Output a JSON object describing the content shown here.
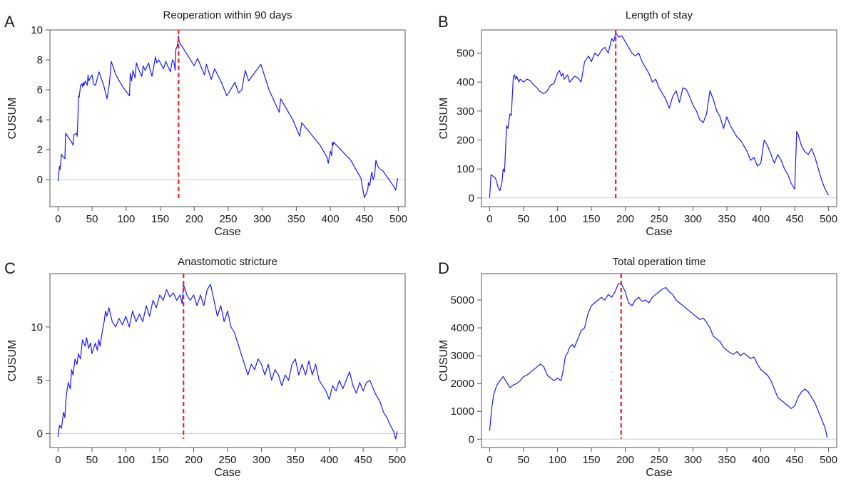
{
  "colors": {
    "line": "#1a1aff",
    "cutoff": "#e8242a",
    "zero": "#cccccc",
    "frame": "#555555",
    "text": "#1a1a1a"
  },
  "chart_data": [
    {
      "panel": "A",
      "type": "line",
      "title": "Reoperation within 90 days",
      "xlabel": "Case",
      "ylabel": "CUSUM",
      "xlim": [
        -12,
        510
      ],
      "ylim": [
        -1.8,
        10.0
      ],
      "xticks": [
        0,
        50,
        100,
        150,
        200,
        250,
        300,
        350,
        400,
        450,
        500
      ],
      "yticks": [
        0,
        2,
        4,
        6,
        8,
        10
      ],
      "cutoff_x": 177,
      "series": [
        {
          "x": [
            0,
            2,
            3,
            5,
            6,
            10,
            11,
            20,
            22,
            23,
            27,
            28,
            29,
            30,
            31,
            33,
            35,
            36,
            37,
            38,
            40,
            43,
            44,
            45,
            50,
            52,
            55,
            60,
            67,
            72,
            75,
            77,
            78,
            85,
            95,
            105,
            106,
            108,
            110,
            113,
            115,
            118,
            123,
            125,
            128,
            133,
            135,
            138,
            143,
            145,
            148,
            155,
            158,
            165,
            168,
            170,
            172,
            173,
            175,
            177,
            178,
            200,
            205,
            215,
            218,
            225,
            230,
            240,
            248,
            260,
            265,
            270,
            275,
            280,
            298,
            310,
            325,
            327,
            345,
            355,
            358,
            385,
            395,
            397,
            400,
            402,
            403,
            404,
            405,
            430,
            445,
            448,
            450,
            455,
            456,
            458,
            460,
            461,
            463,
            465,
            467,
            470,
            473,
            477,
            485,
            494,
            496,
            499
          ],
          "y": [
            -0.1,
            0.9,
            0.7,
            1.7,
            1.6,
            1.4,
            3.1,
            2.5,
            2.3,
            3.0,
            3.1,
            2.9,
            4.0,
            5.6,
            5.5,
            6.3,
            6.4,
            6.2,
            6.5,
            6.3,
            6.6,
            6.3,
            7.0,
            6.6,
            7.0,
            6.4,
            6.3,
            7.2,
            6.3,
            5.4,
            6.3,
            7.2,
            7.9,
            7.0,
            6.2,
            5.6,
            7.1,
            6.6,
            7.3,
            6.8,
            7.8,
            7.4,
            6.9,
            7.6,
            7.3,
            7.8,
            7.4,
            6.9,
            8.2,
            7.8,
            8.0,
            7.4,
            7.9,
            7.2,
            8.0,
            7.9,
            7.3,
            8.7,
            8.9,
            9.6,
            9.2,
            7.6,
            8.1,
            7.0,
            7.7,
            6.7,
            7.4,
            6.5,
            5.6,
            6.5,
            5.8,
            6.0,
            7.3,
            6.6,
            7.7,
            6.0,
            4.5,
            5.4,
            4.0,
            2.9,
            3.8,
            2.3,
            1.5,
            1.1,
            1.9,
            1.6,
            2.5,
            2.3,
            2.5,
            1.3,
            0.1,
            -0.7,
            -1.2,
            -0.7,
            -0.2,
            -0.4,
            0.3,
            0.5,
            0.0,
            0.3,
            1.3,
            0.9,
            0.7,
            0.6,
            0.1,
            -0.5,
            -0.7,
            0.1
          ]
        }
      ]
    },
    {
      "panel": "B",
      "type": "line",
      "title": "Length of stay",
      "xlabel": "Case",
      "ylabel": "CUSUM",
      "xlim": [
        -12,
        512
      ],
      "ylim": [
        -30,
        580
      ],
      "xticks": [
        0,
        50,
        100,
        150,
        200,
        250,
        300,
        350,
        400,
        450,
        500
      ],
      "yticks": [
        0,
        100,
        200,
        300,
        400,
        500
      ],
      "cutoff_x": 186,
      "series": [
        {
          "x": [
            0,
            2,
            5,
            8,
            10,
            12,
            15,
            18,
            20,
            22,
            25,
            27,
            30,
            32,
            35,
            37,
            38,
            40,
            43,
            45,
            48,
            50,
            55,
            60,
            65,
            70,
            73,
            76,
            80,
            85,
            90,
            95,
            100,
            103,
            106,
            108,
            110,
            115,
            118,
            122,
            125,
            130,
            135,
            140,
            143,
            146,
            150,
            155,
            160,
            165,
            170,
            175,
            178,
            180,
            183,
            186,
            190,
            195,
            200,
            205,
            210,
            215,
            220,
            225,
            230,
            235,
            240,
            245,
            250,
            255,
            260,
            265,
            270,
            275,
            280,
            285,
            290,
            295,
            300,
            305,
            310,
            315,
            320,
            325,
            330,
            335,
            340,
            345,
            350,
            355,
            360,
            365,
            370,
            375,
            380,
            385,
            390,
            395,
            400,
            405,
            410,
            415,
            420,
            425,
            430,
            435,
            440,
            445,
            450,
            453,
            455,
            460,
            465,
            470,
            475,
            480,
            485,
            490,
            495,
            500
          ],
          "y": [
            0,
            80,
            75,
            70,
            60,
            40,
            25,
            50,
            100,
            90,
            250,
            240,
            290,
            285,
            420,
            425,
            410,
            420,
            400,
            410,
            405,
            400,
            410,
            405,
            390,
            380,
            370,
            365,
            360,
            370,
            390,
            395,
            430,
            440,
            420,
            430,
            410,
            425,
            400,
            410,
            420,
            415,
            400,
            470,
            480,
            490,
            470,
            500,
            490,
            510,
            520,
            500,
            530,
            550,
            540,
            570,
            555,
            560,
            540,
            520,
            500,
            490,
            500,
            470,
            450,
            430,
            400,
            410,
            380,
            360,
            340,
            310,
            350,
            370,
            330,
            380,
            375,
            350,
            320,
            300,
            270,
            260,
            290,
            370,
            340,
            300,
            280,
            240,
            280,
            250,
            230,
            210,
            200,
            180,
            160,
            130,
            140,
            110,
            120,
            200,
            180,
            150,
            120,
            150,
            130,
            100,
            80,
            50,
            30,
            230,
            220,
            180,
            160,
            150,
            170,
            140,
            100,
            60,
            30,
            10
          ]
        }
      ]
    },
    {
      "panel": "C",
      "type": "line",
      "title": "Anastomotic stricture",
      "xlabel": "Case",
      "ylabel": "CUSUM",
      "xlim": [
        -12,
        512
      ],
      "ylim": [
        -1.3,
        15.0
      ],
      "xticks": [
        0,
        50,
        100,
        150,
        200,
        250,
        300,
        350,
        400,
        450,
        500
      ],
      "yticks": [
        0,
        5,
        10
      ],
      "cutoff_x": 185,
      "series": [
        {
          "x": [
            0,
            2,
            5,
            8,
            10,
            12,
            15,
            18,
            20,
            22,
            25,
            28,
            30,
            33,
            36,
            40,
            42,
            45,
            48,
            50,
            55,
            58,
            60,
            62,
            65,
            68,
            70,
            72,
            75,
            78,
            80,
            85,
            90,
            95,
            100,
            105,
            110,
            115,
            120,
            125,
            130,
            135,
            140,
            145,
            150,
            155,
            160,
            165,
            170,
            175,
            180,
            183,
            185,
            190,
            195,
            200,
            205,
            210,
            215,
            220,
            225,
            230,
            235,
            240,
            245,
            250,
            255,
            260,
            265,
            270,
            275,
            280,
            285,
            290,
            295,
            300,
            305,
            310,
            315,
            320,
            325,
            330,
            335,
            340,
            345,
            350,
            355,
            360,
            365,
            370,
            375,
            380,
            385,
            390,
            395,
            400,
            405,
            410,
            415,
            420,
            425,
            430,
            435,
            440,
            445,
            450,
            455,
            460,
            465,
            470,
            475,
            480,
            485,
            490,
            495,
            498,
            500
          ],
          "y": [
            -0.3,
            0.8,
            0.5,
            2.0,
            1.5,
            3.5,
            4.8,
            4.2,
            6.0,
            5.5,
            7.0,
            6.5,
            7.5,
            7.0,
            8.8,
            8.2,
            9.0,
            8.0,
            8.5,
            7.5,
            8.5,
            7.8,
            8.8,
            8.2,
            9.5,
            10.5,
            11.5,
            11.0,
            11.8,
            11.0,
            10.5,
            10.0,
            10.8,
            10.2,
            11.0,
            10.0,
            11.5,
            10.5,
            11.2,
            10.5,
            12.0,
            11.0,
            12.5,
            11.8,
            13.0,
            12.5,
            13.5,
            12.8,
            13.2,
            12.5,
            13.0,
            12.2,
            14.0,
            13.0,
            12.5,
            13.0,
            12.0,
            13.0,
            12.0,
            13.5,
            14.0,
            12.5,
            11.0,
            12.0,
            10.5,
            11.5,
            10.0,
            9.5,
            8.5,
            7.5,
            6.5,
            5.5,
            6.5,
            6.0,
            7.0,
            6.5,
            5.5,
            6.5,
            5.0,
            6.0,
            5.5,
            4.5,
            5.5,
            5.0,
            6.5,
            7.0,
            5.5,
            6.5,
            5.5,
            6.8,
            5.5,
            6.5,
            5.0,
            4.5,
            4.0,
            3.2,
            4.5,
            4.0,
            5.0,
            4.2,
            5.0,
            5.8,
            4.5,
            3.8,
            4.8,
            4.0,
            4.8,
            5.0,
            4.2,
            3.5,
            3.0,
            2.0,
            1.5,
            0.8,
            0.2,
            -0.5,
            0.2
          ]
        }
      ]
    },
    {
      "panel": "D",
      "type": "line",
      "title": "Total operation time",
      "xlabel": "Case",
      "ylabel": "CUSUM",
      "xlim": [
        -12,
        512
      ],
      "ylim": [
        -300,
        5950
      ],
      "xticks": [
        0,
        50,
        100,
        150,
        200,
        250,
        300,
        350,
        400,
        450,
        500
      ],
      "yticks": [
        0,
        1000,
        2000,
        3000,
        4000,
        5000
      ],
      "cutoff_x": 194,
      "series": [
        {
          "x": [
            0,
            3,
            6,
            10,
            15,
            20,
            25,
            30,
            35,
            40,
            45,
            50,
            55,
            60,
            65,
            70,
            75,
            80,
            85,
            90,
            95,
            100,
            105,
            108,
            112,
            115,
            118,
            122,
            125,
            130,
            135,
            140,
            145,
            150,
            155,
            160,
            165,
            170,
            175,
            180,
            185,
            190,
            195,
            200,
            205,
            210,
            215,
            220,
            225,
            230,
            235,
            240,
            245,
            250,
            255,
            260,
            265,
            270,
            275,
            280,
            285,
            290,
            295,
            300,
            305,
            310,
            315,
            320,
            325,
            330,
            335,
            340,
            345,
            350,
            355,
            360,
            365,
            370,
            375,
            380,
            385,
            390,
            395,
            400,
            405,
            410,
            415,
            420,
            425,
            430,
            435,
            440,
            445,
            450,
            455,
            460,
            465,
            470,
            475,
            480,
            485,
            490,
            495,
            498
          ],
          "y": [
            300,
            1100,
            1600,
            1900,
            2100,
            2250,
            2050,
            1850,
            1950,
            2000,
            2100,
            2250,
            2300,
            2400,
            2500,
            2600,
            2700,
            2600,
            2300,
            2200,
            2100,
            2200,
            2100,
            2400,
            3000,
            3100,
            3300,
            3400,
            3300,
            3600,
            3900,
            4000,
            4500,
            4800,
            4900,
            5000,
            5100,
            5000,
            5200,
            5100,
            5300,
            5600,
            5550,
            5300,
            4900,
            4800,
            5000,
            5100,
            4950,
            5000,
            4900,
            5100,
            5200,
            5300,
            5400,
            5450,
            5300,
            5200,
            5000,
            4900,
            4800,
            4700,
            4600,
            4500,
            4400,
            4300,
            4350,
            4200,
            4000,
            3700,
            3600,
            3500,
            3300,
            3200,
            3100,
            3050,
            3150,
            3000,
            3100,
            3000,
            2900,
            2950,
            2700,
            2500,
            2400,
            2300,
            2100,
            1800,
            1500,
            1400,
            1300,
            1200,
            1100,
            1200,
            1500,
            1700,
            1800,
            1700,
            1500,
            1300,
            1000,
            700,
            400,
            50
          ]
        }
      ]
    }
  ]
}
